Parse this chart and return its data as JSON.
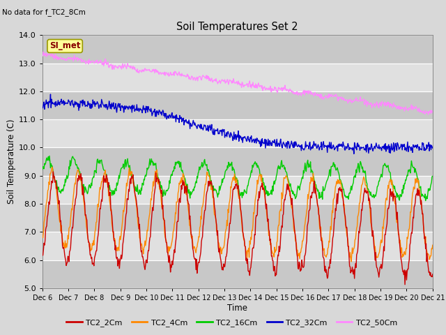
{
  "title": "Soil Temperatures Set 2",
  "subtitle": "No data for f_TC2_8Cm",
  "xlabel": "Time",
  "ylabel": "Soil Temperature (C)",
  "ylim": [
    5.0,
    14.0
  ],
  "yticks": [
    5.0,
    6.0,
    7.0,
    8.0,
    9.0,
    10.0,
    11.0,
    12.0,
    13.0,
    14.0
  ],
  "bg_color": "#d8d8d8",
  "series_colors": {
    "TC2_2Cm": "#cc0000",
    "TC2_4Cm": "#ff8800",
    "TC2_16Cm": "#00cc00",
    "TC2_32Cm": "#0000cc",
    "TC2_50Cm": "#ff88ff"
  },
  "x_tick_labels": [
    "Dec 6",
    "Dec 7",
    "Dec 8",
    "Dec 9",
    "Dec 10",
    "Dec 11",
    "Dec 12",
    "Dec 13",
    "Dec 14",
    "Dec 15",
    "Dec 16",
    "Dec 17",
    "Dec 18",
    "Dec 19",
    "Dec 20",
    "Dec 21"
  ],
  "n_points": 720,
  "legend_label": "SI_met",
  "legend_box_color": "#ffff99",
  "legend_box_border": "#999900",
  "band_colors": [
    "#c8c8c8",
    "#e0e0e0"
  ]
}
